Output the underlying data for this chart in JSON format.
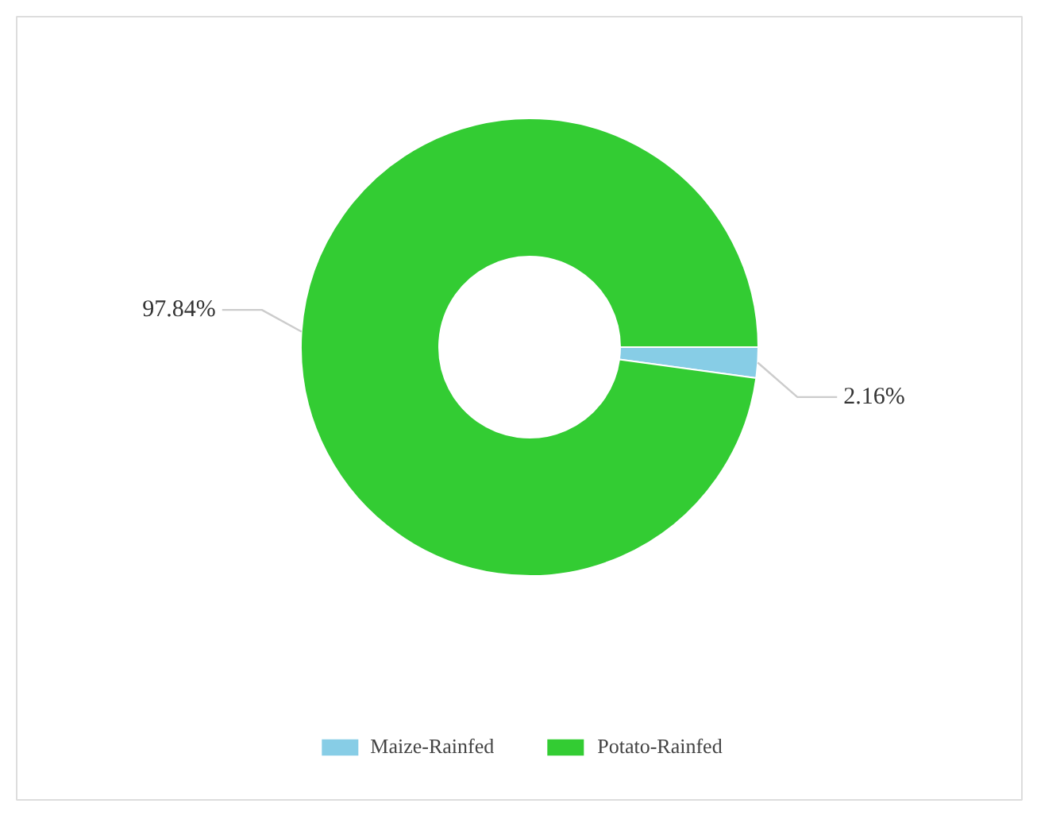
{
  "chart_data": {
    "type": "donut",
    "categories": [
      "Maize-Rainfed",
      "Potato-Rainfed"
    ],
    "values": [
      2.16,
      97.84
    ],
    "colors": [
      "#87cde6",
      "#33cc33"
    ],
    "value_labels": [
      "2.16%",
      "97.84%"
    ],
    "legend": "bottom"
  }
}
